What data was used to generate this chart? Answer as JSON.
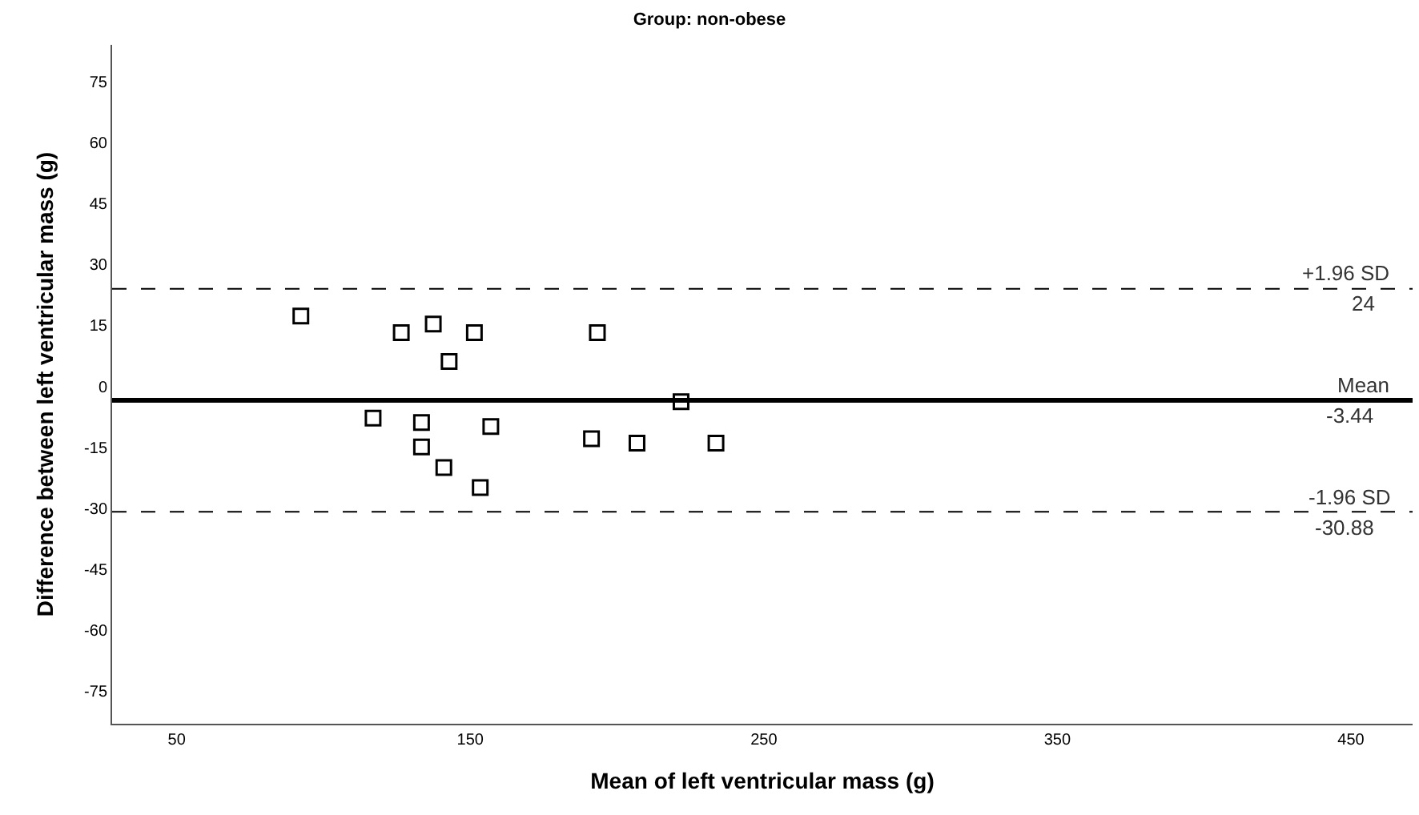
{
  "chart_data": {
    "type": "scatter",
    "title": "Group: non-obese",
    "xlabel": "Mean of left ventricular mass (g)",
    "ylabel": "Difference between left ventricular mass (g)",
    "x": [
      92.3,
      126.5,
      137.4,
      151.4,
      142.8,
      193.3,
      116.9,
      133.4,
      133.4,
      141.0,
      153.4,
      157.0,
      191.3,
      206.8,
      221.8,
      233.7
    ],
    "series": [
      {
        "color": "#000000",
        "values": [
          17.3,
          13.2,
          15.3,
          13.2,
          6.1,
          13.2,
          -7.8,
          -8.9,
          -14.9,
          -20.0,
          -24.9,
          -9.9,
          -12.9,
          -14.0,
          -3.8,
          -14.0
        ]
      }
    ],
    "annotations": [
      {
        "text": "24",
        "y": 24
      },
      {
        "text": "-3.44",
        "y": -3.44
      },
      {
        "text": "-30.88",
        "y": -30.88
      }
    ],
    "marker": "square",
    "xlim": [
      28,
      471
    ],
    "xticks": [
      50,
      150,
      250,
      350,
      450
    ],
    "ylim": [
      -83,
      84
    ],
    "yticks": [
      -75,
      -60,
      -45,
      -30,
      -15,
      0,
      15,
      30,
      45,
      60,
      75
    ],
    "ref_lines": [
      {
        "axis": "y",
        "value": 24,
        "label": "+1.96 SD",
        "line_style": "dashed",
        "color": "#000000"
      },
      {
        "axis": "y",
        "value": -3.44,
        "label": "Mean",
        "line_style": "solid",
        "color": "#000000"
      },
      {
        "axis": "y",
        "value": -30.88,
        "label": "-1.96 SD",
        "line_style": "dashed",
        "color": "#000000"
      }
    ]
  }
}
